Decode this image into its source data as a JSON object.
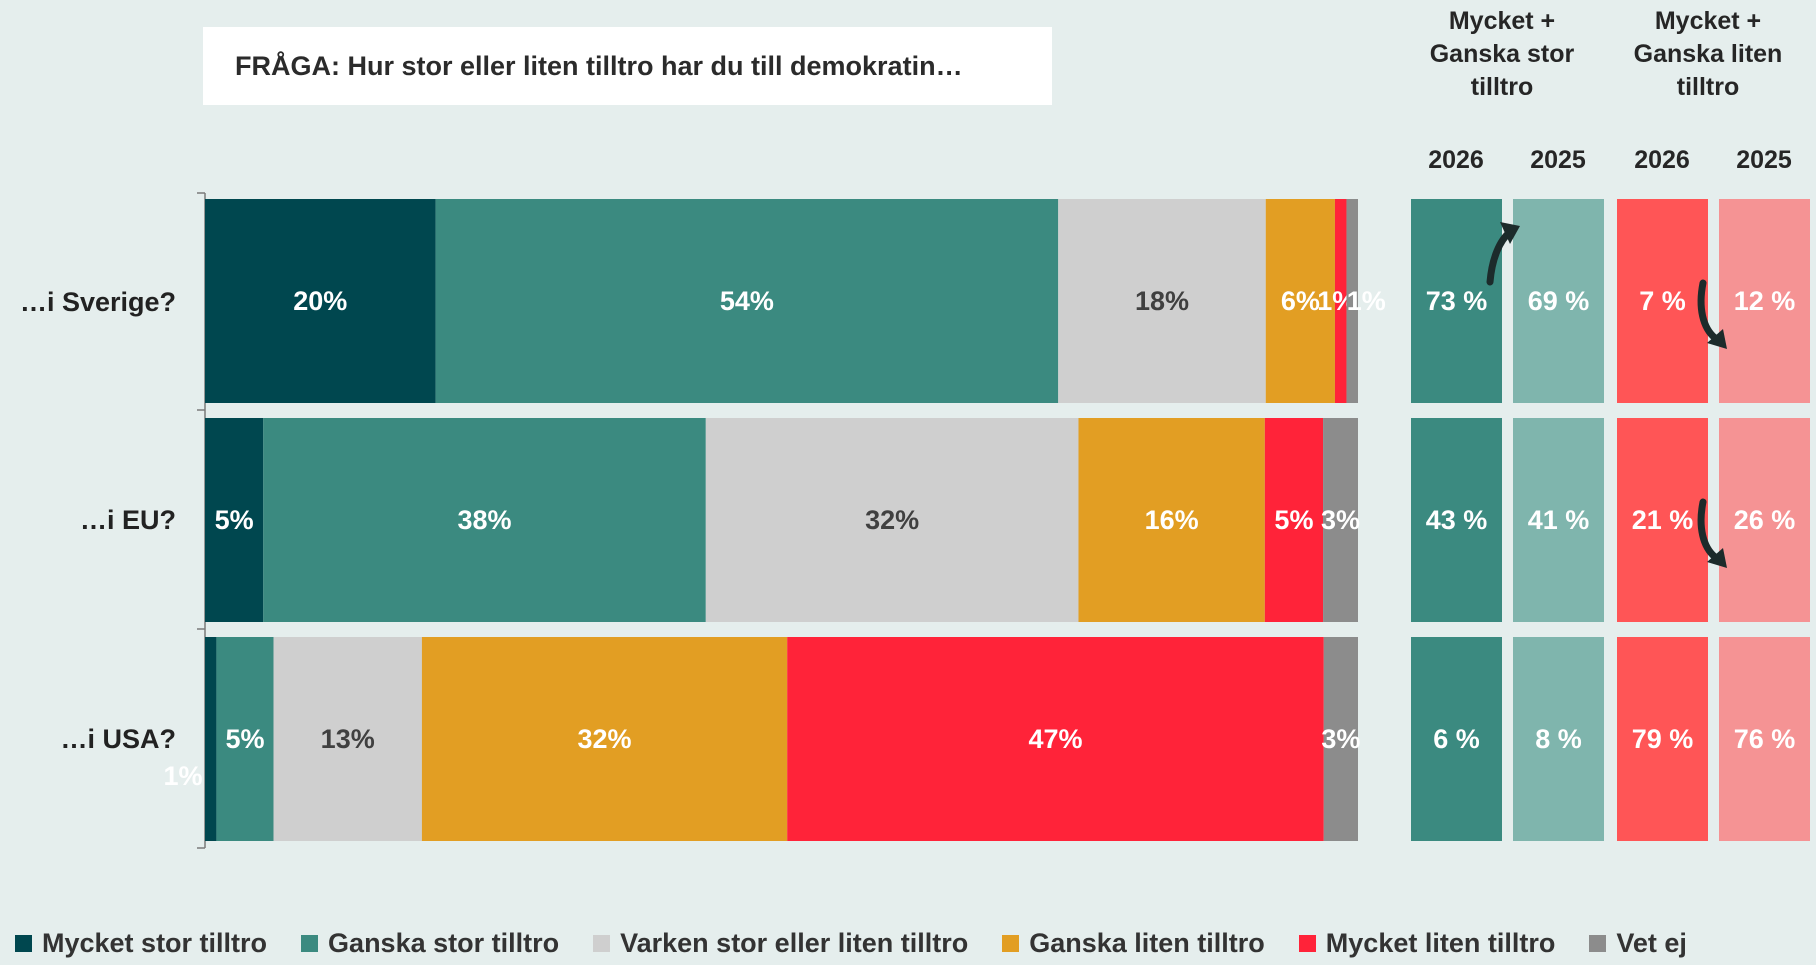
{
  "question": "FRÅGA: Hur stor eller liten tilltro har du till demokratin…",
  "summary_headers": {
    "high": "Mycket + Ganska stor tilltro",
    "low": "Mycket + Ganska liten tilltro",
    "years": [
      "2026",
      "2025",
      "2026",
      "2025"
    ]
  },
  "chart_data": {
    "type": "bar",
    "orientation": "horizontal",
    "stacked": true,
    "categories": [
      "…i Sverige?",
      "…i EU?",
      "…i USA?"
    ],
    "series": [
      {
        "name": "Mycket stor tilltro",
        "color": "#00474f",
        "label_color": "#ffffff",
        "values": [
          20,
          5,
          1
        ],
        "labels": [
          "20%",
          "5%",
          "1%"
        ]
      },
      {
        "name": "Ganska stor tilltro",
        "color": "#3b8a80",
        "label_color": "#ffffff",
        "values": [
          54,
          38,
          5
        ],
        "labels": [
          "54%",
          "38%",
          "5%"
        ]
      },
      {
        "name": "Varken stor eller liten tilltro",
        "color": "#cfcfcf",
        "label_color": "#404040",
        "values": [
          18,
          32,
          13
        ],
        "labels": [
          "18%",
          "32%",
          "13%"
        ]
      },
      {
        "name": "Ganska liten tilltro",
        "color": "#e29e23",
        "label_color": "#ffffff",
        "values": [
          6,
          16,
          32
        ],
        "labels": [
          "6%",
          "16%",
          "32%"
        ]
      },
      {
        "name": "Mycket liten tilltro",
        "color": "#ff2339",
        "label_color": "#ffffff",
        "values": [
          1,
          5,
          47
        ],
        "labels": [
          "1%",
          "5%",
          "47%"
        ]
      },
      {
        "name": "Vet ej",
        "color": "#8c8c8c",
        "label_color": "#ffffff",
        "values": [
          1,
          3,
          3
        ],
        "labels": [
          "1%",
          "3%",
          "3%"
        ]
      }
    ],
    "summary": {
      "high_2026": {
        "values": [
          73,
          43,
          6
        ],
        "labels": [
          "73 %",
          "43 %",
          "6 %"
        ],
        "color": "#3b8a80"
      },
      "high_2025": {
        "values": [
          69,
          41,
          8
        ],
        "labels": [
          "69 %",
          "41 %",
          "8 %"
        ],
        "color": "#7fb5ad"
      },
      "low_2026": {
        "values": [
          7,
          21,
          79
        ],
        "labels": [
          "7 %",
          "21 %",
          "79 %"
        ],
        "color": "#ff5556"
      },
      "low_2025": {
        "values": [
          12,
          26,
          76
        ],
        "labels": [
          "12 %",
          "26 %",
          "76 %"
        ],
        "color": "#f59394"
      }
    },
    "change_arrows": [
      {
        "row": 0,
        "column": "high",
        "direction": "up"
      },
      {
        "row": 0,
        "column": "low",
        "direction": "down"
      },
      {
        "row": 1,
        "column": "low",
        "direction": "down"
      }
    ],
    "legend_position": "bottom"
  }
}
